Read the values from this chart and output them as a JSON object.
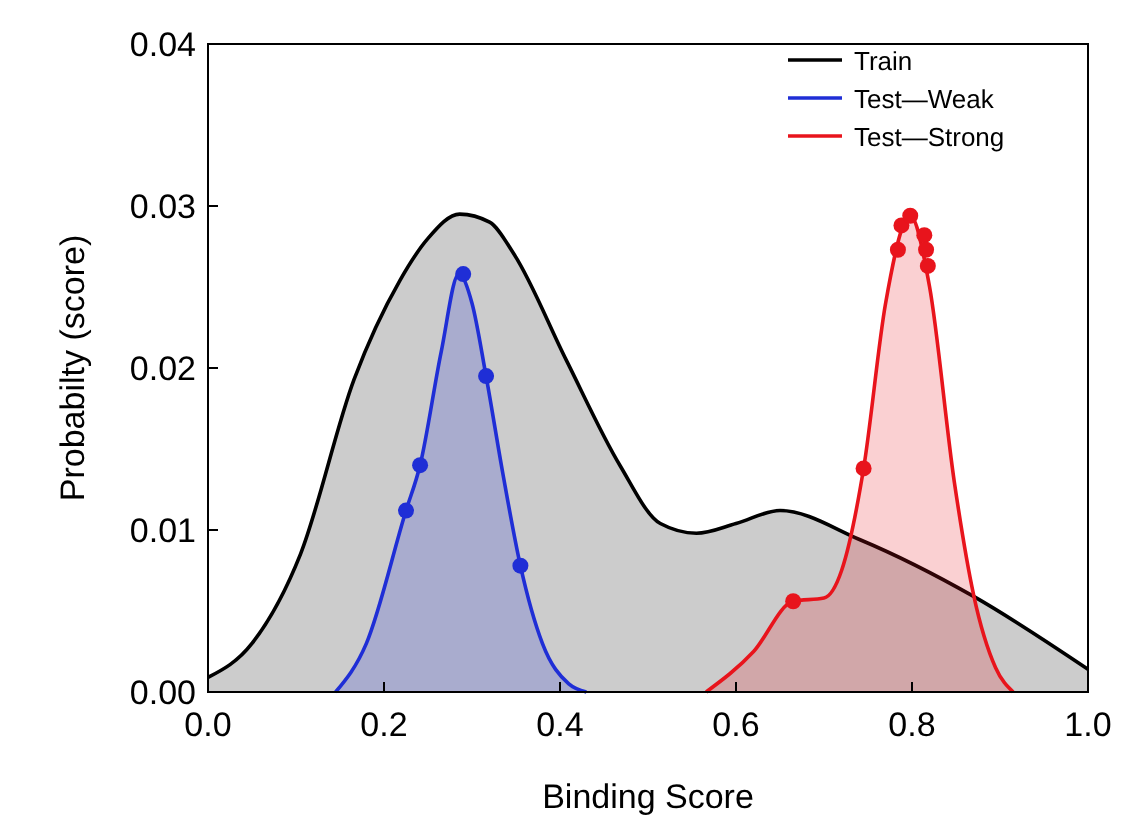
{
  "chart_data": {
    "type": "area",
    "xlabel": "Binding Score",
    "ylabel": "Probabilty (score)",
    "xlim": [
      0,
      1
    ],
    "ylim": [
      0,
      0.04
    ],
    "xticks": [
      {
        "value": 0,
        "label": "0.0"
      },
      {
        "value": 0.2,
        "label": "0.2"
      },
      {
        "value": 0.4,
        "label": "0.4"
      },
      {
        "value": 0.6,
        "label": "0.6"
      },
      {
        "value": 0.8,
        "label": "0.8"
      },
      {
        "value": 1,
        "label": "1.0"
      }
    ],
    "yticks": [
      {
        "value": 0,
        "label": "0.00"
      },
      {
        "value": 0.01,
        "label": "0.01"
      },
      {
        "value": 0.02,
        "label": "0.02"
      },
      {
        "value": 0.03,
        "label": "0.03"
      },
      {
        "value": 0.04,
        "label": "0.04"
      }
    ],
    "legend": "top right",
    "grid": false,
    "series": [
      {
        "name": "Train",
        "color": "#000000",
        "x": [
          0,
          0.05,
          0.105,
          0.166,
          0.218,
          0.25,
          0.286,
          0.32,
          0.348,
          0.407,
          0.468,
          0.514,
          0.555,
          0.6,
          0.65,
          0.741,
          0.87,
          1.0
        ],
        "values": [
          0.0009,
          0.003,
          0.0085,
          0.0193,
          0.0254,
          0.028,
          0.0295,
          0.029,
          0.027,
          0.0205,
          0.014,
          0.0104,
          0.0098,
          0.0104,
          0.0112,
          0.0094,
          0.0059,
          0.0014
        ]
      },
      {
        "name": "Test—Weak",
        "color": "#1f2ed6",
        "x": [
          0.145,
          0.18,
          0.225,
          0.241,
          0.265,
          0.285,
          0.3,
          0.316,
          0.335,
          0.355,
          0.38,
          0.41,
          0.43
        ],
        "values": [
          0,
          0.003,
          0.0112,
          0.014,
          0.021,
          0.0258,
          0.024,
          0.0195,
          0.0135,
          0.0078,
          0.003,
          0.0005,
          0
        ]
      },
      {
        "name": "Test—Strong",
        "color": "#e8141c",
        "x": [
          0.566,
          0.62,
          0.665,
          0.7,
          0.72,
          0.745,
          0.77,
          0.798,
          0.82,
          0.848,
          0.87,
          0.895,
          0.915
        ],
        "values": [
          0,
          0.0025,
          0.0056,
          0.0058,
          0.0075,
          0.0138,
          0.024,
          0.0294,
          0.025,
          0.013,
          0.006,
          0.0015,
          0
        ]
      },
      {
        "type": "scatter",
        "marker": "circle",
        "color": "#1f2ed6",
        "x": [
          0.225,
          0.241,
          0.29,
          0.316,
          0.355
        ],
        "values": [
          0.0112,
          0.014,
          0.0258,
          0.0195,
          0.0078
        ]
      },
      {
        "type": "scatter",
        "marker": "circle",
        "color": "#e8141c",
        "x": [
          0.665,
          0.745,
          0.784,
          0.788,
          0.798,
          0.814,
          0.816,
          0.818
        ],
        "values": [
          0.0056,
          0.0138,
          0.0273,
          0.0288,
          0.0294,
          0.0282,
          0.0273,
          0.0263
        ]
      }
    ]
  }
}
